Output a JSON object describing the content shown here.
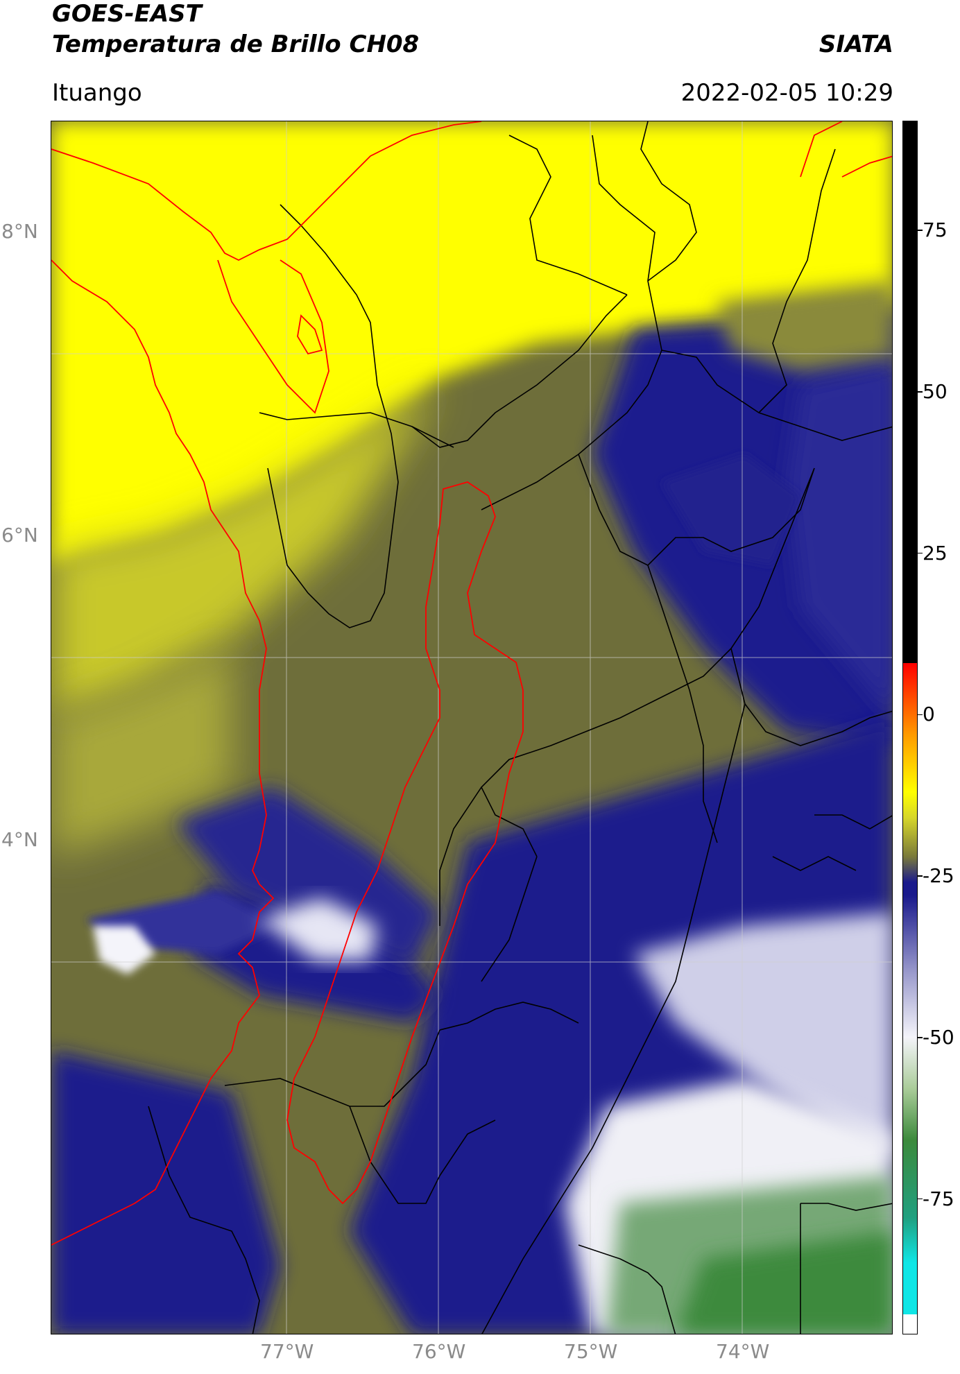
{
  "header": {
    "title_line1": "GOES-EAST",
    "title_line2": "Temperatura de Brillo CH08",
    "brand": "SIATA",
    "region": "Ituango",
    "datetime": "2022-02-05 10:29"
  },
  "map": {
    "lat_labels": [
      {
        "label": "8°N",
        "lat": 8
      },
      {
        "label": "6°N",
        "lat": 6
      },
      {
        "label": "4°N",
        "lat": 4
      }
    ],
    "lon_labels": [
      {
        "label": "77°W",
        "lon": -77
      },
      {
        "label": "76°W",
        "lon": -76
      },
      {
        "label": "75°W",
        "lon": -75
      },
      {
        "label": "74°W",
        "lon": -74
      }
    ],
    "colors": {
      "warm_yellow": "#ffff00",
      "olive": "#9a9a2a",
      "navy": "#1a1a8c",
      "cold_white": "#f4f4fa",
      "green": "#3c8a3c",
      "coast_line": "#ff0000",
      "border_line": "#000000",
      "region_outline": "#ff0000"
    }
  },
  "colorbar": {
    "ticks": [
      "75",
      "50",
      "25",
      "0",
      "-25",
      "-50",
      "-75"
    ],
    "tick_values": [
      75,
      50,
      25,
      0,
      -25,
      -50,
      -75
    ],
    "range": [
      -96,
      92
    ],
    "colors": [
      "#ffffff",
      "#10e6e6",
      "#20a080",
      "#3c8a3c",
      "#aacc99",
      "#f4f4fa",
      "#9a9acc",
      "#1a1a8c",
      "#7a7a3a",
      "#d6d62a",
      "#ffff00",
      "#ff9900",
      "#ff0000",
      "#000000"
    ]
  }
}
